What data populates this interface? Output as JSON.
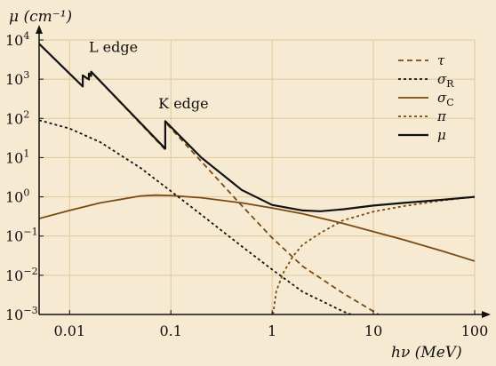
{
  "chart_data": {
    "type": "line",
    "xlabel": "hν (MeV)",
    "ylabel": "μ (cm⁻¹)",
    "x_scale": "log",
    "y_scale": "log",
    "xlim": [
      0.005,
      100
    ],
    "ylim": [
      0.001,
      10000
    ],
    "x_ticks": [
      0.01,
      0.1,
      1,
      10,
      100
    ],
    "x_tick_labels": [
      "0.01",
      "0.1",
      "1",
      "10",
      "100"
    ],
    "y_ticks": [
      0.001,
      0.01,
      0.1,
      1,
      10,
      100,
      1000,
      10000
    ],
    "y_tick_labels": [
      {
        "base": "10",
        "exp": "−3"
      },
      {
        "base": "10",
        "exp": "−2"
      },
      {
        "base": "10",
        "exp": "−1"
      },
      {
        "base": "10",
        "exp": "0"
      },
      {
        "base": "10",
        "exp": "1"
      },
      {
        "base": "10",
        "exp": "2"
      },
      {
        "base": "10",
        "exp": "3"
      },
      {
        "base": "10",
        "exp": "4"
      }
    ],
    "grid": true,
    "legend_position": "top-right",
    "annotations": [
      {
        "text": "L edge",
        "x": 0.0175,
        "y": 5000
      },
      {
        "text": "K edge",
        "x": 0.085,
        "y": 180
      }
    ],
    "series": [
      {
        "name": "τ",
        "key": "tau",
        "style": "dashed",
        "color": "#7a4a12",
        "x": [
          0.005,
          0.0135,
          0.0135,
          0.0155,
          0.0155,
          0.0163,
          0.0163,
          0.088,
          0.088,
          0.2,
          0.5,
          1,
          2,
          5,
          10,
          20,
          50
        ],
        "y": [
          8000,
          650,
          1250,
          980,
          1400,
          1200,
          1550,
          16,
          80,
          8,
          0.6,
          0.09,
          0.017,
          0.0035,
          0.0012,
          0.0004,
          0.001
        ]
      },
      {
        "name": "σR",
        "key": "sigma_r",
        "style": "dotted",
        "color": "#111111",
        "x": [
          0.005,
          0.01,
          0.02,
          0.05,
          0.1,
          0.2,
          0.5,
          1,
          2,
          5,
          6
        ],
        "y": [
          90,
          55,
          25,
          5.5,
          1.4,
          0.35,
          0.055,
          0.014,
          0.0038,
          0.0012,
          0.001
        ]
      },
      {
        "name": "σC",
        "key": "sigma_c",
        "style": "solid",
        "color": "#7a4a12",
        "x": [
          0.005,
          0.01,
          0.02,
          0.05,
          0.07,
          0.1,
          0.2,
          0.5,
          1,
          2,
          5,
          10,
          20,
          50,
          100
        ],
        "y": [
          0.28,
          0.45,
          0.7,
          1.05,
          1.1,
          1.08,
          0.95,
          0.7,
          0.52,
          0.37,
          0.21,
          0.13,
          0.08,
          0.04,
          0.023
        ]
      },
      {
        "name": "π",
        "key": "pi",
        "style": "dotted",
        "color": "#7a4a12",
        "x": [
          1.02,
          1.1,
          1.3,
          1.6,
          2,
          3,
          5,
          10,
          20,
          50,
          100
        ],
        "y": [
          0.001,
          0.004,
          0.012,
          0.03,
          0.06,
          0.12,
          0.25,
          0.42,
          0.58,
          0.82,
          1.0
        ]
      },
      {
        "name": "μ",
        "key": "mu",
        "style": "solid",
        "color": "#111111",
        "x": [
          0.005,
          0.0135,
          0.0135,
          0.0155,
          0.0155,
          0.0163,
          0.0163,
          0.088,
          0.088,
          0.2,
          0.5,
          1,
          2,
          3,
          5,
          10,
          20,
          50,
          100
        ],
        "y": [
          8000,
          650,
          1250,
          980,
          1400,
          1200,
          1550,
          17,
          85,
          10,
          1.5,
          0.62,
          0.45,
          0.43,
          0.48,
          0.6,
          0.7,
          0.85,
          1.0
        ]
      }
    ]
  }
}
